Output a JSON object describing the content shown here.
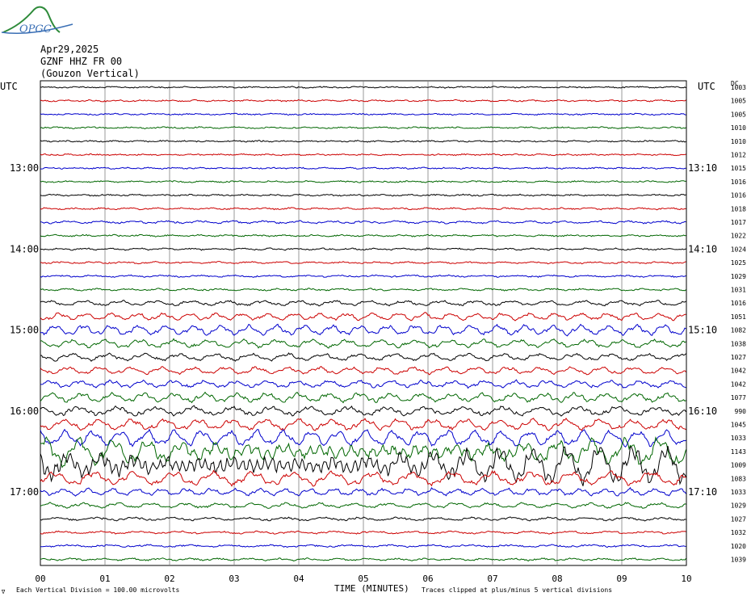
{
  "logo": {
    "text": "OPGC"
  },
  "header": {
    "date": "Apr29,2025",
    "station": "GZNF HHZ FR 00",
    "location": "(Gouzon Vertical)"
  },
  "footer": {
    "scale_note": "Each Vertical Division =  100.00 microvolts",
    "clip_note": "Traces clipped at plus/minus 5 vertical divisions",
    "corner_mark": "∇"
  },
  "chart_data": {
    "type": "line",
    "title": "",
    "xlabel": "TIME (MINUTES)",
    "xlim": [
      0,
      10
    ],
    "x_ticks": [
      "00",
      "01",
      "02",
      "03",
      "04",
      "05",
      "06",
      "07",
      "08",
      "09",
      "10"
    ],
    "left_axis_label": "UTC",
    "right_axis_label": "UTC",
    "dc_column_label": "DC",
    "left_time_labels": [
      {
        "row": 6,
        "label": "13:00"
      },
      {
        "row": 12,
        "label": "14:00"
      },
      {
        "row": 18,
        "label": "15:00"
      },
      {
        "row": 24,
        "label": "16:00"
      },
      {
        "row": 30,
        "label": "17:00"
      }
    ],
    "right_time_labels": [
      {
        "row": 6,
        "label": "13:10"
      },
      {
        "row": 12,
        "label": "14:10"
      },
      {
        "row": 18,
        "label": "15:10"
      },
      {
        "row": 24,
        "label": "16:10"
      },
      {
        "row": 30,
        "label": "17:10"
      }
    ],
    "trace_colors": [
      "#000000",
      "#cc0000",
      "#0000cc",
      "#006600"
    ],
    "dc_offsets": [
      "1003",
      "1005",
      "1005",
      "1010",
      "1010",
      "1012",
      "1015",
      "1016",
      "1016",
      "1018",
      "1017",
      "1022",
      "1024",
      "1025",
      "1029",
      "1031",
      "1016",
      "1051",
      "1082",
      "1038",
      "1027",
      "1042",
      "1042",
      "1077",
      "990",
      "1045",
      "1033",
      "1143",
      "1009",
      "1083",
      "1033",
      "1029",
      "1027",
      "1032",
      "1020",
      "1039"
    ],
    "trace_activity": [
      0.05,
      0.06,
      0.05,
      0.06,
      0.05,
      0.05,
      0.05,
      0.06,
      0.06,
      0.07,
      0.12,
      0.07,
      0.08,
      0.08,
      0.08,
      0.09,
      0.25,
      0.35,
      0.5,
      0.4,
      0.35,
      0.35,
      0.35,
      0.45,
      0.45,
      0.55,
      0.8,
      1.6,
      2.0,
      0.7,
      0.35,
      0.25,
      0.15,
      0.12,
      0.1,
      0.1
    ]
  }
}
